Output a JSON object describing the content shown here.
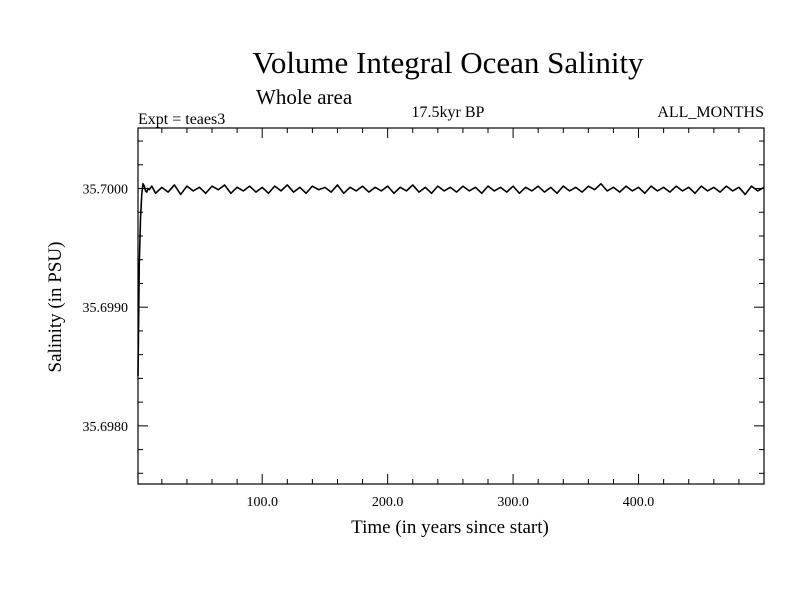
{
  "chart_data": {
    "type": "line",
    "title": "Volume Integral Ocean Salinity",
    "subtitle": "Whole area",
    "experiment_label": "Expt = teaes3",
    "period_label": "17.5kyr BP",
    "months_label": "ALL_MONTHS",
    "xlabel": "Time (in years since start)",
    "ylabel": "Salinity (in PSU)",
    "xlim": [
      1,
      500
    ],
    "ylim": [
      35.69751,
      35.70051
    ],
    "x_ticks": [
      100,
      200,
      300,
      400
    ],
    "x_tick_labels": [
      "100.0",
      "200.0",
      "300.0",
      "400.0"
    ],
    "y_ticks": [
      35.698,
      35.699,
      35.7
    ],
    "y_tick_labels": [
      "35.6980",
      "35.6990",
      "35.7000"
    ],
    "grid": false,
    "series": [
      {
        "name": "Salinity",
        "x": [
          1,
          2,
          3,
          4,
          5,
          6,
          7,
          8,
          9,
          10,
          12,
          15,
          20,
          25,
          30,
          35,
          40,
          45,
          50,
          55,
          60,
          65,
          70,
          75,
          80,
          85,
          90,
          95,
          100,
          105,
          110,
          115,
          120,
          125,
          130,
          135,
          140,
          145,
          150,
          155,
          160,
          165,
          170,
          175,
          180,
          185,
          190,
          195,
          200,
          205,
          210,
          215,
          220,
          225,
          230,
          235,
          240,
          245,
          250,
          255,
          260,
          265,
          270,
          275,
          280,
          285,
          290,
          295,
          300,
          305,
          310,
          315,
          320,
          325,
          330,
          335,
          340,
          345,
          350,
          355,
          360,
          365,
          370,
          375,
          380,
          385,
          390,
          395,
          400,
          405,
          410,
          415,
          420,
          425,
          430,
          435,
          440,
          445,
          450,
          455,
          460,
          465,
          470,
          475,
          480,
          485,
          490,
          495,
          500
        ],
        "values": [
          35.69842,
          35.69935,
          35.69975,
          35.69995,
          35.70004,
          35.70002,
          35.69998,
          35.69997,
          35.7,
          35.69999,
          35.70002,
          35.69996,
          35.70001,
          35.69997,
          35.70003,
          35.69995,
          35.70002,
          35.69998,
          35.70001,
          35.69996,
          35.70002,
          35.69999,
          35.70003,
          35.69996,
          35.70001,
          35.69998,
          35.70002,
          35.69997,
          35.70001,
          35.69996,
          35.70002,
          35.69998,
          35.70003,
          35.69997,
          35.70001,
          35.69996,
          35.70002,
          35.69999,
          35.70001,
          35.69997,
          35.70003,
          35.69996,
          35.70001,
          35.69998,
          35.70002,
          35.69997,
          35.70001,
          35.69998,
          35.70002,
          35.69996,
          35.70001,
          35.69998,
          35.70003,
          35.69997,
          35.70001,
          35.69996,
          35.70002,
          35.69998,
          35.70001,
          35.69997,
          35.70002,
          35.69998,
          35.70001,
          35.69996,
          35.70002,
          35.69998,
          35.70001,
          35.69997,
          35.70002,
          35.69996,
          35.70001,
          35.69998,
          35.70002,
          35.69997,
          35.70001,
          35.69996,
          35.70002,
          35.69998,
          35.70001,
          35.69997,
          35.70002,
          35.69999,
          35.70004,
          35.69998,
          35.70001,
          35.69997,
          35.70002,
          35.69998,
          35.70001,
          35.69996,
          35.70002,
          35.69998,
          35.70001,
          35.69997,
          35.70002,
          35.69998,
          35.70001,
          35.69996,
          35.70002,
          35.69998,
          35.70001,
          35.69997,
          35.70002,
          35.69998,
          35.70001,
          35.69995,
          35.70002,
          35.69998,
          35.70001
        ]
      }
    ]
  }
}
